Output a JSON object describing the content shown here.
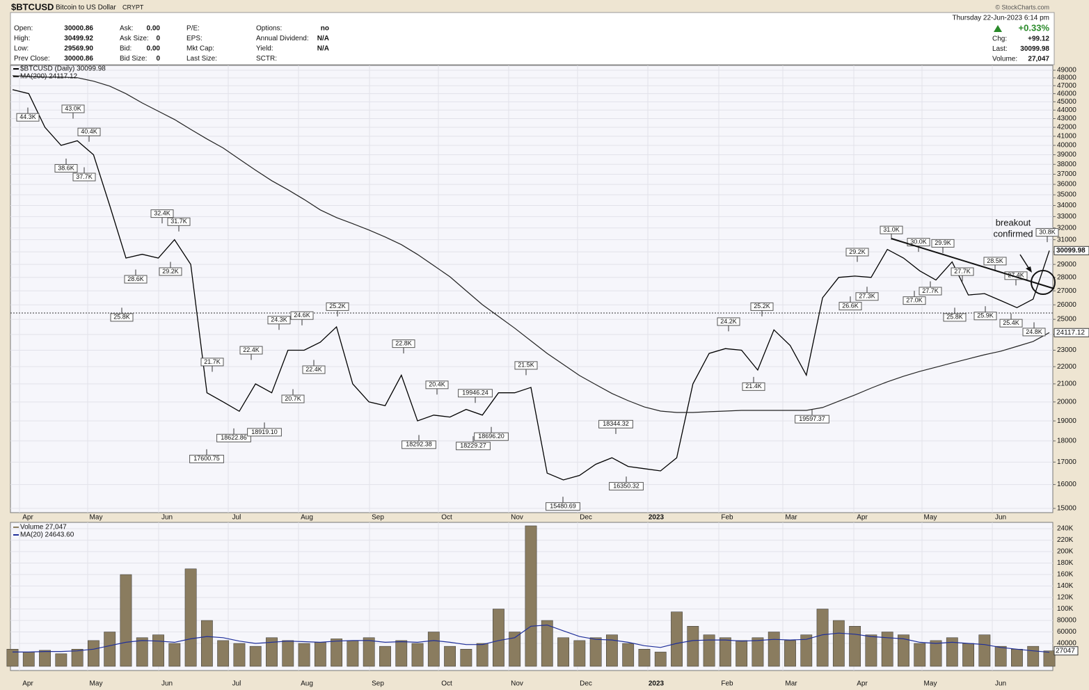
{
  "header": {
    "symbol": "$BTCUSD",
    "name": "Bitcoin to US Dollar",
    "exchange": "CRYPT",
    "date": "Thursday  22-Jun-2023 6:14 pm",
    "copyright": "© StockCharts.com",
    "columns": [
      [
        [
          "Open:",
          "30000.86"
        ],
        [
          "High:",
          "30499.92"
        ],
        [
          "Low:",
          "29569.90"
        ],
        [
          "Prev Close:",
          "30000.86"
        ]
      ],
      [
        [
          "Ask:",
          "0.00"
        ],
        [
          "Ask Size:",
          "0"
        ],
        [
          "Bid:",
          "0.00"
        ],
        [
          "Bid Size:",
          "0"
        ]
      ],
      [
        [
          "P/E:"
        ],
        [
          "EPS:"
        ],
        [
          "Mkt Cap:"
        ],
        [
          "Last Size:"
        ]
      ],
      [
        [
          "Options:",
          "no"
        ],
        [
          "Annual Dividend:",
          "N/A"
        ],
        [
          "Yield:",
          "N/A"
        ],
        [
          "SCTR:"
        ]
      ]
    ],
    "right": [
      [
        "Chg:",
        "+99.12"
      ],
      [
        "Last:",
        "30099.98"
      ],
      [
        "Volume:",
        "27,047"
      ]
    ],
    "change": "+0.33%"
  },
  "chart_data": [
    {
      "type": "line",
      "log_scale": true,
      "grid": true,
      "months": [
        "Apr",
        "May",
        "Jun",
        "Jul",
        "Aug",
        "Sep",
        "Oct",
        "Nov",
        "Dec",
        "2023",
        "Feb",
        "Mar",
        "Apr",
        "May",
        "Jun"
      ],
      "series": [
        {
          "name": "$BTCUSD (Daily) 30099.98",
          "color": "#000000",
          "values": [
            46500,
            46000,
            42000,
            40000,
            40500,
            39000,
            34000,
            29500,
            29800,
            29500,
            31000,
            29000,
            20500,
            20000,
            19500,
            21000,
            20500,
            23000,
            23000,
            23500,
            24500,
            21000,
            20000,
            19800,
            21500,
            19000,
            19300,
            19200,
            19600,
            19300,
            20500,
            20500,
            20800,
            16500,
            16200,
            16400,
            16900,
            17200,
            16800,
            16700,
            16600,
            17200,
            21000,
            22800,
            23100,
            23000,
            21800,
            24300,
            23300,
            21500,
            26500,
            28000,
            28100,
            28000,
            30200,
            29500,
            28500,
            27800,
            29200,
            26700,
            26800,
            26300,
            25800,
            26400,
            30099.98
          ]
        },
        {
          "name": "MA(200) 24117.12",
          "color": "#222222",
          "values": [
            48290,
            48190,
            48100,
            48100,
            48030,
            47580,
            46950,
            45990,
            44860,
            43870,
            42900,
            41770,
            40700,
            39720,
            38550,
            37410,
            36360,
            35480,
            34560,
            33600,
            32910,
            32370,
            31820,
            31230,
            30590,
            29790,
            28910,
            28050,
            27010,
            26010,
            25200,
            24410,
            23590,
            22800,
            22130,
            21480,
            20960,
            20460,
            20070,
            19730,
            19510,
            19440,
            19440,
            19480,
            19510,
            19550,
            19550,
            19550,
            19550,
            19550,
            19700,
            20040,
            20380,
            20760,
            21120,
            21440,
            21720,
            21970,
            22220,
            22470,
            22720,
            22940,
            23240,
            23550,
            24117.12
          ]
        }
      ],
      "ylim": [
        14830,
        49650
      ],
      "yticks": [
        15000,
        16000,
        17000,
        18000,
        19000,
        20000,
        21000,
        22000,
        23000,
        24000,
        25000,
        26000,
        27000,
        28000,
        29000,
        30000,
        31000,
        32000,
        33000,
        34000,
        35000,
        36000,
        37000,
        38000,
        39000,
        40000,
        41000,
        42000,
        43000,
        44000,
        45000,
        46000,
        47000,
        48000,
        49000
      ],
      "annotations": [
        {
          "value": 44300,
          "label": "44.3K"
        },
        {
          "value": 43000,
          "label": "43.0K"
        },
        {
          "value": 40400,
          "label": "40.4K"
        },
        {
          "value": 38600,
          "label": "38.6K"
        },
        {
          "value": 37700,
          "label": "37.7K"
        },
        {
          "value": 25800,
          "label": "25.8K"
        },
        {
          "value": 32400,
          "label": "32.4K"
        },
        {
          "value": 31700,
          "label": "31.7K"
        },
        {
          "value": 28600,
          "label": "28.6K"
        },
        {
          "value": 29200,
          "label": "29.2K"
        },
        {
          "value": 21700,
          "label": "21.7K"
        },
        {
          "value": 17600.75,
          "label": "17600.75"
        },
        {
          "value": 18622.86,
          "label": "18622.86"
        },
        {
          "value": 22400,
          "label": "22.4K"
        },
        {
          "value": 18919.1,
          "label": "18919.10"
        },
        {
          "value": 24300,
          "label": "24.3K"
        },
        {
          "value": 24600,
          "label": "24.6K"
        },
        {
          "value": 20700,
          "label": "20.7K"
        },
        {
          "value": 22400,
          "label": "22.4K"
        },
        {
          "value": 25200,
          "label": "25.2K"
        },
        {
          "value": 22800,
          "label": "22.8K"
        },
        {
          "value": 18292.38,
          "label": "18292.38"
        },
        {
          "value": 20400,
          "label": "20.4K"
        },
        {
          "value": 19946.24,
          "label": "19946.24"
        },
        {
          "value": 18229.27,
          "label": "18229.27"
        },
        {
          "value": 18696.2,
          "label": "18696.20"
        },
        {
          "value": 21500,
          "label": "21.5K"
        },
        {
          "value": 15480.69,
          "label": "15480.69"
        },
        {
          "value": 18344.32,
          "label": "18344.32"
        },
        {
          "value": 16350.32,
          "label": "16350.32"
        },
        {
          "value": 24200,
          "label": "24.2K"
        },
        {
          "value": 25200,
          "label": "25.2K"
        },
        {
          "value": 21400,
          "label": "21.4K"
        },
        {
          "value": 19597.37,
          "label": "19597.37"
        },
        {
          "value": 29200,
          "label": "29.2K"
        },
        {
          "value": 26600,
          "label": "26.6K"
        },
        {
          "value": 27300,
          "label": "27.3K"
        },
        {
          "value": 31000,
          "label": "31.0K"
        },
        {
          "value": 30000,
          "label": "30.0K"
        },
        {
          "value": 29900,
          "label": "29.9K"
        },
        {
          "value": 27000,
          "label": "27.0K"
        },
        {
          "value": 27700,
          "label": "27.7K"
        },
        {
          "value": 27700,
          "label": "27.7K"
        },
        {
          "value": 25800,
          "label": "25.8K"
        },
        {
          "value": 28500,
          "label": "28.5K"
        },
        {
          "value": 25900,
          "label": "25.9K"
        },
        {
          "value": 27400,
          "label": "27.4K"
        },
        {
          "value": 25400,
          "label": "25.4K"
        },
        {
          "value": 24800,
          "label": "24.8K"
        },
        {
          "value": 30800,
          "label": "30.8K"
        }
      ],
      "note": [
        "breakout",
        "confirmed"
      ]
    },
    {
      "type": "bar",
      "grid": true,
      "series": [
        {
          "name": "Volume 27,047",
          "color": "#8a7c5f",
          "values": [
            30000,
            25000,
            28000,
            22000,
            30000,
            45000,
            60000,
            160000,
            50000,
            55000,
            40000,
            170000,
            80000,
            45000,
            40000,
            35000,
            50000,
            45000,
            40000,
            42000,
            48000,
            45000,
            50000,
            35000,
            45000,
            40000,
            60000,
            35000,
            30000,
            40000,
            100000,
            60000,
            245000,
            80000,
            50000,
            45000,
            50000,
            55000,
            40000,
            30000,
            25000,
            95000,
            70000,
            55000,
            50000,
            45000,
            50000,
            60000,
            45000,
            55000,
            100000,
            80000,
            70000,
            55000,
            60000,
            55000,
            40000,
            45000,
            50000,
            40000,
            55000,
            35000,
            30000,
            35000,
            27047
          ]
        },
        {
          "name": "MA(20) 24643.60",
          "color": "#1f2f9a",
          "type": "line",
          "values": [
            25000,
            25000,
            26000,
            26000,
            27000,
            30000,
            36000,
            42000,
            45000,
            44000,
            42000,
            48000,
            52000,
            50000,
            44000,
            40000,
            42000,
            44000,
            43000,
            42000,
            44000,
            45000,
            45000,
            42000,
            43000,
            42000,
            45000,
            42000,
            38000,
            38000,
            45000,
            50000,
            70000,
            72000,
            62000,
            52000,
            47000,
            46000,
            42000,
            36000,
            33000,
            40000,
            45000,
            46000,
            46000,
            44000,
            45000,
            47000,
            46000,
            47000,
            55000,
            58000,
            56000,
            52000,
            50000,
            48000,
            42000,
            40000,
            42000,
            40000,
            38000,
            33000,
            30000,
            27000,
            24643.6
          ]
        }
      ],
      "ylim": [
        0,
        251000
      ],
      "yticks": [
        40000,
        60000,
        80000,
        {
          "value": 100000,
          "label": "100K"
        },
        {
          "value": 120000,
          "label": "120K"
        },
        {
          "value": 140000,
          "label": "140K"
        },
        {
          "value": 160000,
          "label": "160K"
        },
        {
          "value": 180000,
          "label": "180K"
        },
        {
          "value": 200000,
          "label": "200K"
        },
        {
          "value": 220000,
          "label": "220K"
        },
        {
          "value": 240000,
          "label": "240K"
        }
      ]
    }
  ]
}
